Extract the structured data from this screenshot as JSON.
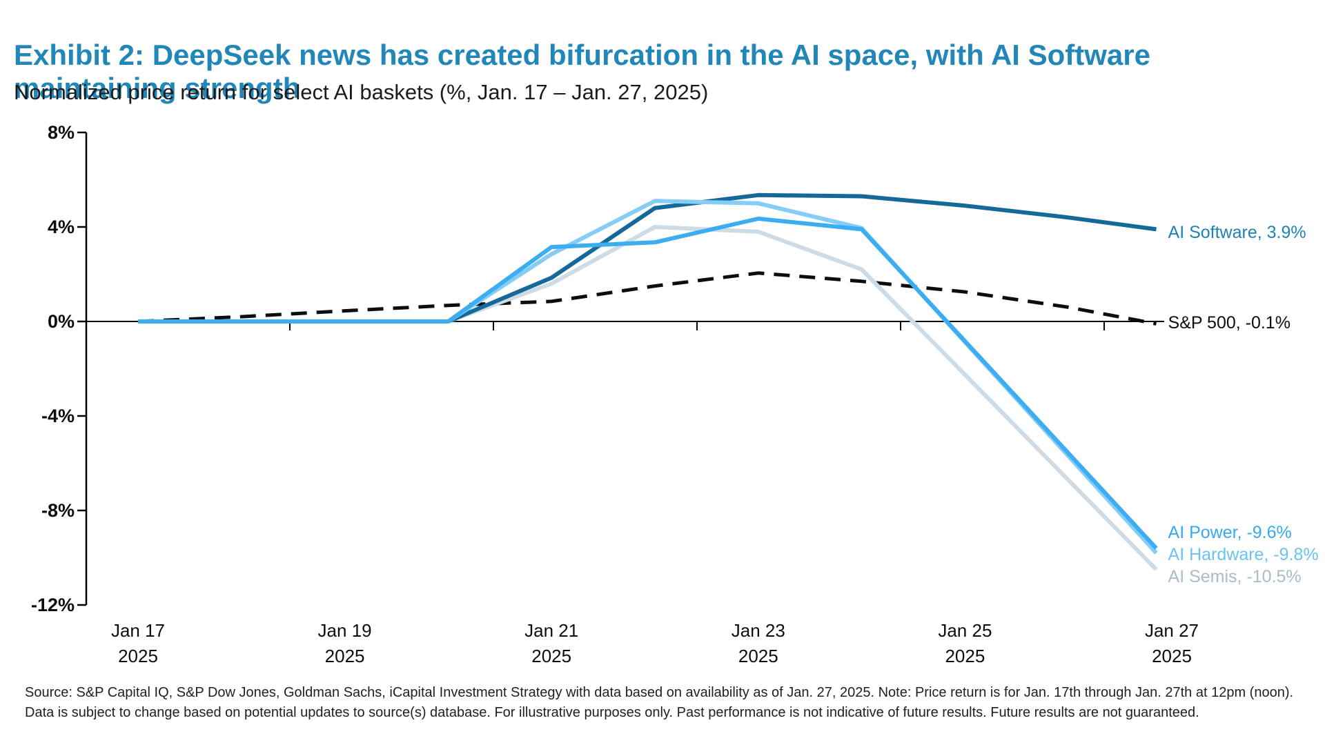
{
  "header": {
    "title": "Exhibit 2: DeepSeek news has created bifurcation in the AI space, with AI Software maintaining strength",
    "subtitle": "Normalized price return for select AI baskets (%, Jan. 17 – Jan. 27, 2025)",
    "title_color": "#2186B8"
  },
  "footer": {
    "source_note": "Source: S&P Capital IQ, S&P Dow Jones, Goldman Sachs, iCapital Investment Strategy with data based on availability as of Jan. 27, 2025. Note: Price return is for Jan. 17th through Jan. 27th at 12pm (noon). Data is subject to change based on potential updates to source(s) database. For illustrative purposes only. Past performance is not indicative of future results. Future results are not guaranteed."
  },
  "chart_data": {
    "type": "line",
    "title": "Normalized price return for select AI baskets (%, Jan. 17 – Jan. 27, 2025)",
    "grid": "off",
    "legend_position": "line-end-labels-right",
    "y_axis": {
      "unit": "%",
      "min": -12,
      "max": 8,
      "tick_values": [
        8,
        4,
        0,
        -4,
        -8,
        -12
      ],
      "tick_labels": [
        "8%",
        "4%",
        "0%",
        "-4%",
        "-8%",
        "-12%"
      ]
    },
    "x_axis": {
      "label_days": [
        17,
        19,
        21,
        23,
        25,
        27
      ],
      "tick_labels": [
        [
          "Jan 17",
          "2025"
        ],
        [
          "Jan 19",
          "2025"
        ],
        [
          "Jan 21",
          "2025"
        ],
        [
          "Jan 23",
          "2025"
        ],
        [
          "Jan 25",
          "2025"
        ],
        [
          "Jan 27",
          "2025"
        ]
      ],
      "note": "x in calendar days of Jan 2025; last data point Jan 27 at 12pm"
    },
    "series": [
      {
        "key": "sp500",
        "name": "S&P 500",
        "end_label": "S&P 500, -0.1%",
        "final_value": -0.1,
        "style": "dashed",
        "color": "#0d0d0d",
        "label_color": "#0d0d0d",
        "points": [
          [
            17,
            0
          ],
          [
            18,
            0.2
          ],
          [
            19,
            0.45
          ],
          [
            20,
            0.68
          ],
          [
            21,
            0.85
          ],
          [
            22,
            1.5
          ],
          [
            23,
            2.05
          ],
          [
            24,
            1.7
          ],
          [
            25,
            1.25
          ],
          [
            26,
            0.6
          ],
          [
            26.85,
            -0.1
          ]
        ]
      },
      {
        "key": "ai-semis",
        "name": "AI Semis",
        "end_label": "AI Semis, -10.5%",
        "final_value": -10.5,
        "style": "solid",
        "color": "#CDDBE6",
        "label_color": "#A8BCCB",
        "points": [
          [
            17,
            0
          ],
          [
            18,
            0
          ],
          [
            19,
            0
          ],
          [
            20,
            0
          ],
          [
            21,
            1.6
          ],
          [
            22,
            4.0
          ],
          [
            23,
            3.8
          ],
          [
            24,
            2.2
          ],
          [
            26.85,
            -10.5
          ]
        ]
      },
      {
        "key": "ai-software",
        "name": "AI Software",
        "end_label": "AI Software, 3.9%",
        "final_value": 3.9,
        "style": "solid",
        "color": "#15689A",
        "label_color": "#1C83B4",
        "points": [
          [
            17,
            0
          ],
          [
            18,
            0
          ],
          [
            19,
            0
          ],
          [
            20,
            0
          ],
          [
            21,
            1.85
          ],
          [
            22,
            4.8
          ],
          [
            23,
            5.35
          ],
          [
            24,
            5.3
          ],
          [
            25,
            4.9
          ],
          [
            26,
            4.4
          ],
          [
            26.85,
            3.9
          ]
        ]
      },
      {
        "key": "ai-hardware",
        "name": "AI Hardware",
        "end_label": "AI Hardware, -9.8%",
        "final_value": -9.8,
        "style": "solid",
        "color": "#85CCF6",
        "label_color": "#6AC3F4",
        "points": [
          [
            17,
            0
          ],
          [
            18,
            0
          ],
          [
            19,
            0
          ],
          [
            20,
            0
          ],
          [
            21,
            2.85
          ],
          [
            22,
            5.1
          ],
          [
            23,
            5.0
          ],
          [
            24,
            3.95
          ],
          [
            26.85,
            -9.8
          ]
        ]
      },
      {
        "key": "ai-power",
        "name": "AI Power",
        "end_label": "AI Power, -9.6%",
        "final_value": -9.6,
        "style": "solid",
        "color": "#3CADF1",
        "label_color": "#36A9F0",
        "points": [
          [
            17,
            0
          ],
          [
            18,
            0
          ],
          [
            19,
            0
          ],
          [
            20,
            0
          ],
          [
            21,
            3.15
          ],
          [
            22,
            3.35
          ],
          [
            23,
            4.35
          ],
          [
            24,
            3.9
          ],
          [
            26.85,
            -9.6
          ]
        ]
      }
    ]
  }
}
